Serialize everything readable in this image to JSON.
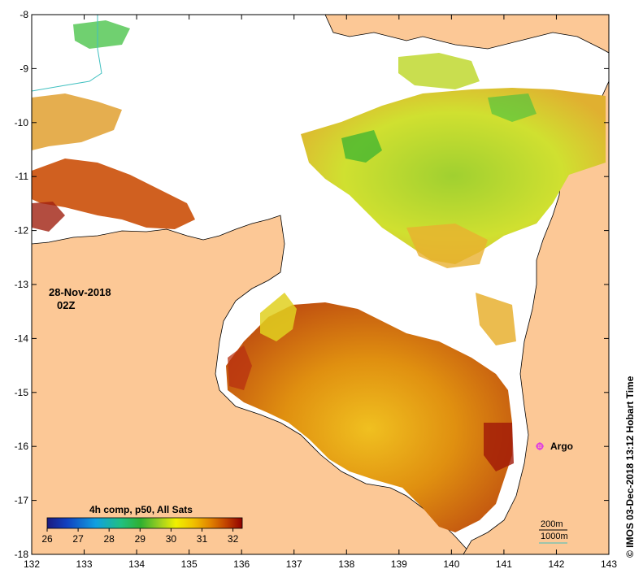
{
  "map": {
    "lon_ticks": [
      "132",
      "133",
      "134",
      "135",
      "136",
      "137",
      "138",
      "139",
      "140",
      "141",
      "142",
      "143"
    ],
    "lat_ticks": [
      "-8",
      "-9",
      "-10",
      "-11",
      "-12",
      "-13",
      "-14",
      "-15",
      "-16",
      "-17",
      "-18"
    ],
    "lon_range": [
      132,
      143
    ],
    "lat_range": [
      -8,
      -18
    ],
    "colors": {
      "land": "#fcc896",
      "no_data": "#ffffff",
      "coast": "#000000",
      "argo_marker": "#e040e0",
      "isobath": "#40c0c0"
    }
  },
  "annotations": {
    "date": "28-Nov-2018",
    "time": "02Z",
    "argo": "Argo",
    "credit": "© IMOS 03-Dec-2018 13:12 Hobart Time"
  },
  "legend": {
    "title": "4h comp, p50, All Sats",
    "ticks": [
      "26",
      "27",
      "28",
      "29",
      "30",
      "31",
      "32"
    ],
    "range": [
      26,
      32.3
    ],
    "colors": [
      "#1a1a80",
      "#1040c0",
      "#10a0e0",
      "#20c080",
      "#30b030",
      "#a0d020",
      "#f0f000",
      "#f0c000",
      "#e08000",
      "#c04000",
      "#900000"
    ]
  },
  "scale": {
    "depth1": "200m",
    "depth2": "1000m"
  }
}
